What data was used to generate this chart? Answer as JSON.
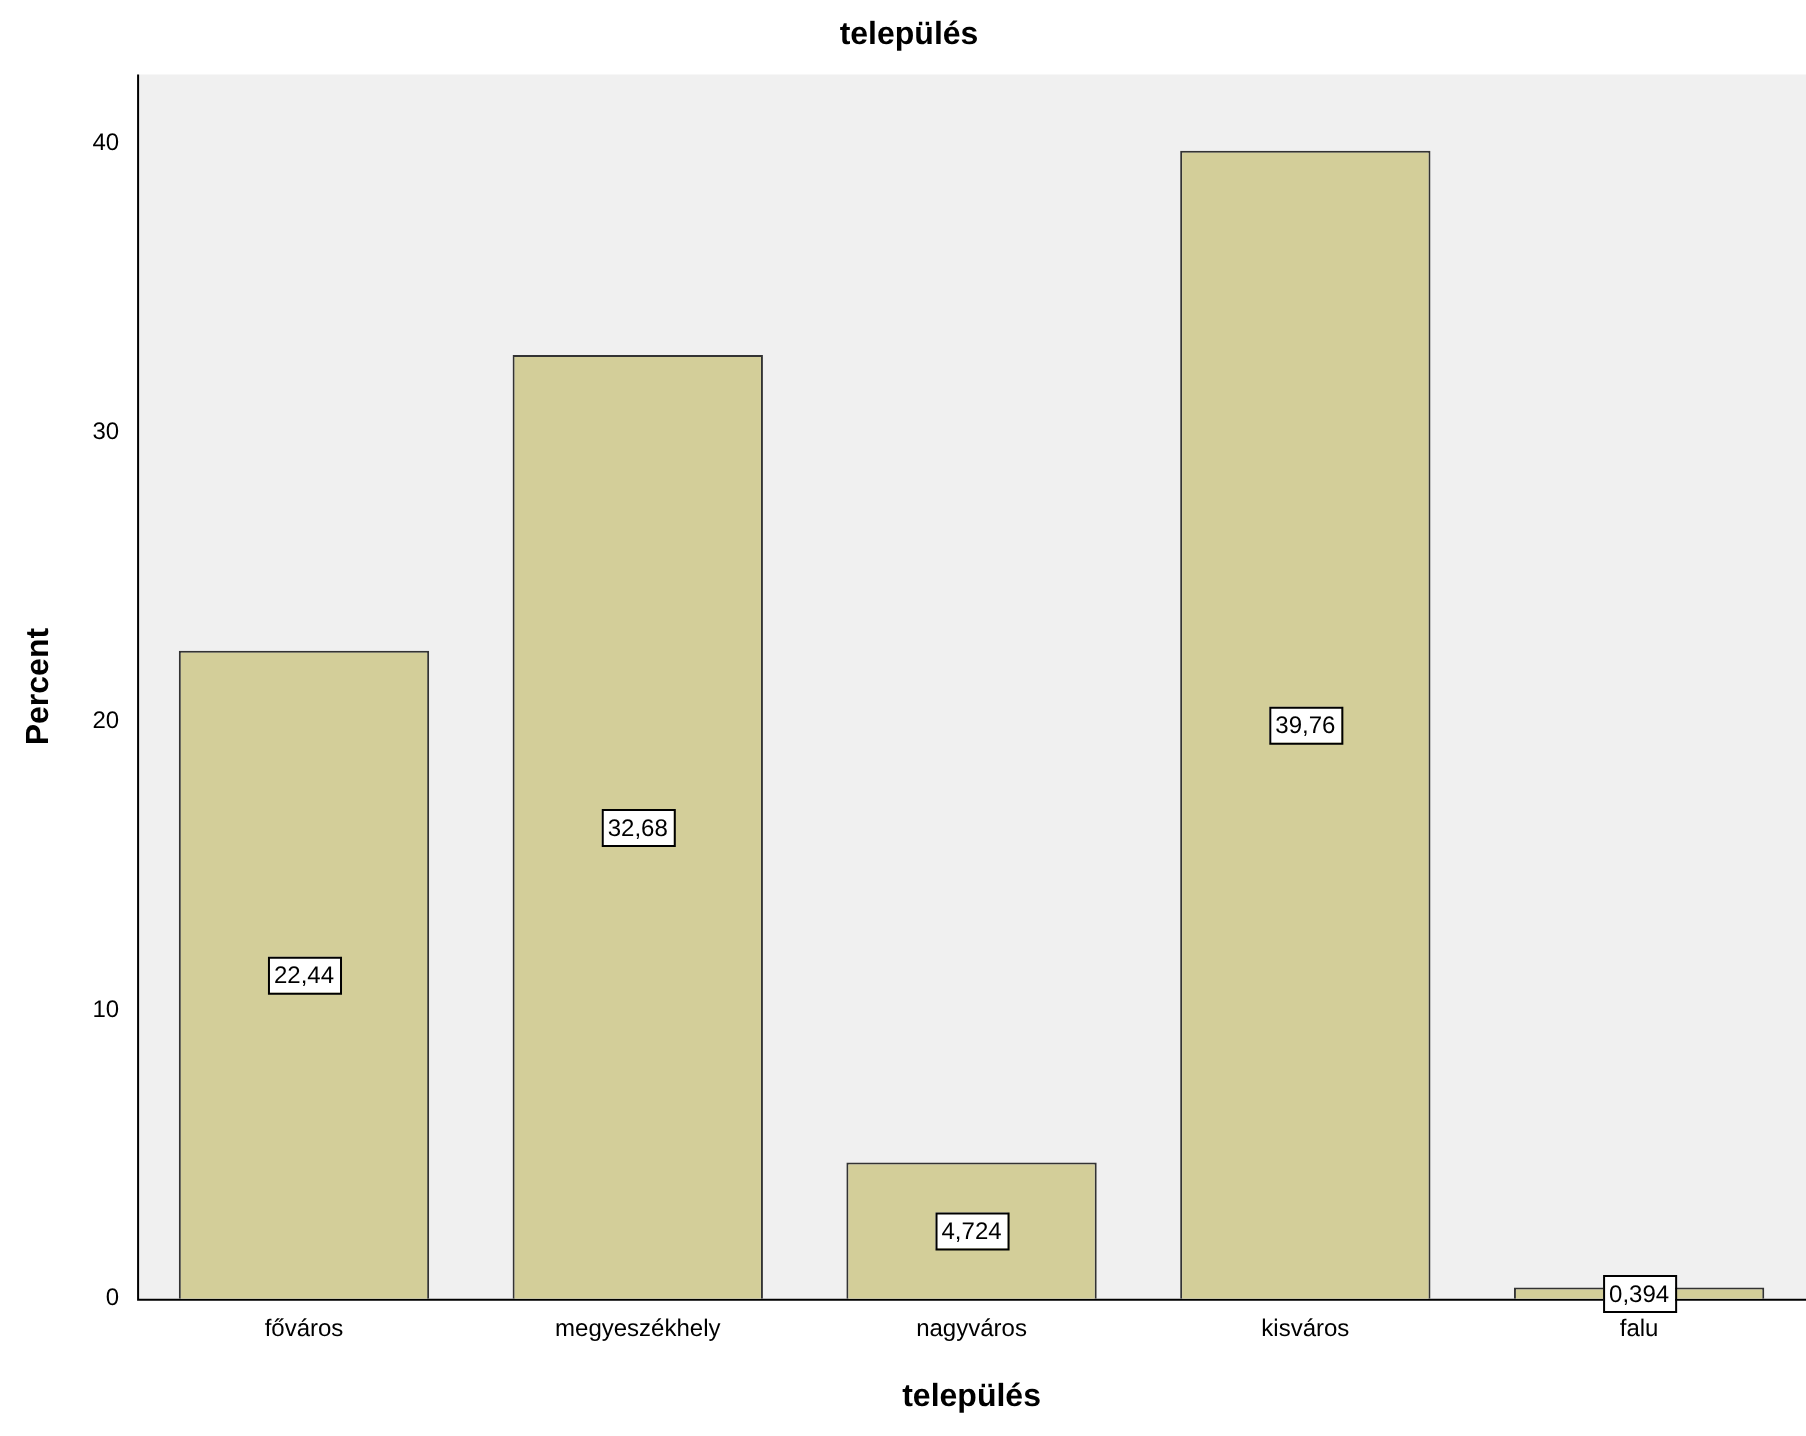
{
  "chart_data": {
    "type": "bar",
    "title": "település",
    "xlabel": "település",
    "ylabel": "Percent",
    "categories": [
      "főváros",
      "megyeszékhely",
      "nagyváros",
      "kisváros",
      "falu"
    ],
    "values": [
      22.44,
      32.68,
      4.724,
      39.76,
      0.394
    ],
    "value_labels": [
      "22,44",
      "32,68",
      "4,724",
      "39,76",
      "0,394"
    ],
    "color": "#d3ce99",
    "ylim": [
      0,
      42.4
    ],
    "yticks": [
      0,
      10,
      20,
      30,
      40
    ],
    "grid": false,
    "legend": false
  }
}
